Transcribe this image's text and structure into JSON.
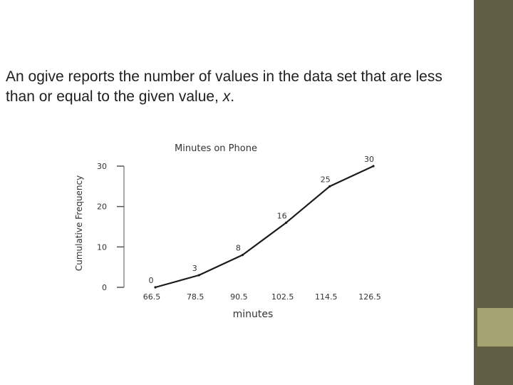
{
  "slide": {
    "text_before": "An ogive reports the number of values in the data set that are less than or equal to the given value, ",
    "variable": "x",
    "text_after": "."
  },
  "theme": {
    "sidebar_color": "#625d45",
    "accent_color": "#a6a373",
    "line_color": "#1a1a1a"
  },
  "chart_data": {
    "type": "line",
    "title": "Minutes on Phone",
    "xlabel": "minutes",
    "ylabel": "Cumulative Frequency",
    "x_ticks": [
      "66.5",
      "78.5",
      "90.5",
      "102.5",
      "114.5",
      "126.5"
    ],
    "y_ticks": [
      "0",
      "10",
      "20",
      "30"
    ],
    "ylim": [
      0,
      30
    ],
    "grid": false,
    "legend": "none",
    "series": [
      {
        "x": [
          66.5,
          78.5,
          90.5,
          102.5,
          114.5,
          126.5
        ],
        "y": [
          0,
          3,
          8,
          16,
          25,
          30
        ],
        "labels": [
          "0",
          "3",
          "8",
          "16",
          "25",
          "30"
        ]
      }
    ]
  }
}
